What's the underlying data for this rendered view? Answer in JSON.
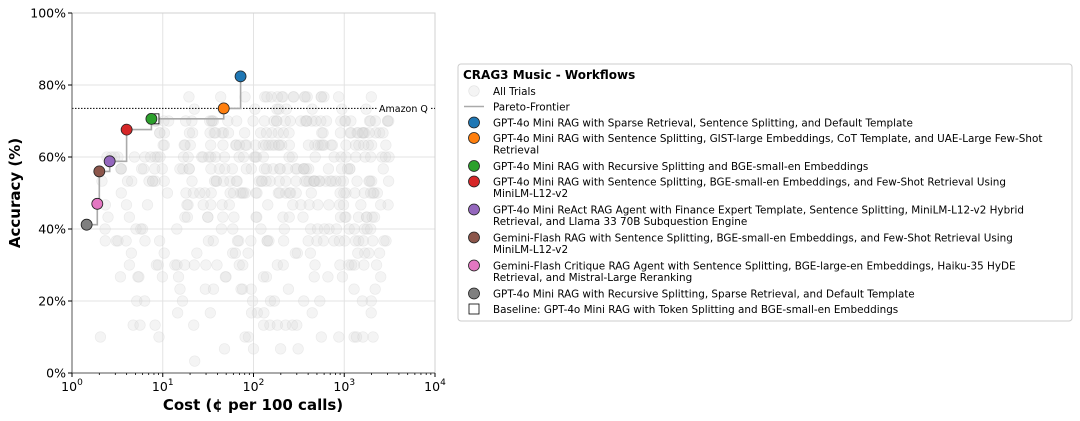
{
  "chart_data": {
    "type": "scatter",
    "xlabel": "Cost (¢ per 100 calls)",
    "ylabel": "Accuracy (%)",
    "xscale": "log",
    "xlim": [
      1,
      10000
    ],
    "ylim": [
      0,
      100
    ],
    "x_ticks": [
      {
        "value": 1,
        "base": "10",
        "exp": "0"
      },
      {
        "value": 10,
        "base": "10",
        "exp": "1"
      },
      {
        "value": 100,
        "base": "10",
        "exp": "2"
      },
      {
        "value": 1000,
        "base": "10",
        "exp": "3"
      },
      {
        "value": 10000,
        "base": "10",
        "exp": "4"
      }
    ],
    "y_ticks": [
      {
        "value": 0,
        "label": "0%"
      },
      {
        "value": 20,
        "label": "20%"
      },
      {
        "value": 40,
        "label": "40%"
      },
      {
        "value": 60,
        "label": "60%"
      },
      {
        "value": 80,
        "label": "80%"
      },
      {
        "value": 100,
        "label": "100%"
      }
    ],
    "grid": true,
    "reference_line": {
      "y": 73.5,
      "label": "Amazon Q",
      "style": "dotted"
    },
    "legend": {
      "position": "right",
      "title": "CRAG3 Music - Workflows",
      "all_trials_label": "All Trials",
      "pareto_label": "Pareto-Frontier",
      "baseline_label": "Baseline: GPT-4o Mini RAG with Token Splitting and BGE-small-en Embeddings"
    },
    "pareto_frontier": [
      [
        1.45,
        41.2
      ],
      [
        1.9,
        41.2
      ],
      [
        1.9,
        47.0
      ],
      [
        2.0,
        47.0
      ],
      [
        2.0,
        56.0
      ],
      [
        2.6,
        56.0
      ],
      [
        2.6,
        58.8
      ],
      [
        4.0,
        58.8
      ],
      [
        4.0,
        67.6
      ],
      [
        7.5,
        67.6
      ],
      [
        7.5,
        70.6
      ],
      [
        47,
        70.6
      ],
      [
        47,
        73.5
      ],
      [
        72,
        73.5
      ],
      [
        72,
        82.4
      ]
    ],
    "highlighted": [
      {
        "x": 72,
        "y": 82.4,
        "color": "#1f77b4",
        "lines": [
          "GPT-4o Mini RAG with Sparse Retrieval, Sentence Splitting, and Default Template"
        ]
      },
      {
        "x": 47,
        "y": 73.5,
        "color": "#ff7f0e",
        "lines": [
          "GPT-4o Mini RAG with Sentence Splitting, GIST-large Embeddings, CoT Template, and UAE-Large Few-Shot",
          "Retrieval"
        ]
      },
      {
        "x": 7.5,
        "y": 70.6,
        "color": "#2ca02c",
        "lines": [
          "GPT-4o Mini RAG with Recursive Splitting and BGE-small-en Embeddings"
        ]
      },
      {
        "x": 4.0,
        "y": 67.6,
        "color": "#d62728",
        "lines": [
          "GPT-4o Mini RAG with Sentence Splitting, BGE-small-en Embeddings, and Few-Shot Retrieval Using",
          "MiniLM-L12-v2"
        ]
      },
      {
        "x": 2.6,
        "y": 58.8,
        "color": "#9467bd",
        "lines": [
          "GPT-4o Mini ReAct RAG Agent with Finance Expert Template, Sentence Splitting, MiniLM-L12-v2 Hybrid",
          "Retrieval, and Llama 33 70B Subquestion Engine"
        ]
      },
      {
        "x": 2.0,
        "y": 56.0,
        "color": "#8c564b",
        "lines": [
          "Gemini-Flash RAG with Sentence Splitting, BGE-small-en Embeddings, and Few-Shot Retrieval Using",
          "MiniLM-L12-v2"
        ]
      },
      {
        "x": 1.9,
        "y": 47.0,
        "color": "#e377c2",
        "lines": [
          "Gemini-Flash Critique RAG Agent with Sentence Splitting, BGE-large-en Embeddings, Haiku-35 HyDE",
          "Retrieval, and Mistral-Large Reranking"
        ]
      },
      {
        "x": 1.45,
        "y": 41.2,
        "color": "#7f7f7f",
        "lines": [
          "GPT-4o Mini RAG with Recursive Splitting, Sparse Retrieval, and Default Template"
        ]
      }
    ],
    "baseline_point": {
      "x": 8.0,
      "y": 70.6
    }
  }
}
